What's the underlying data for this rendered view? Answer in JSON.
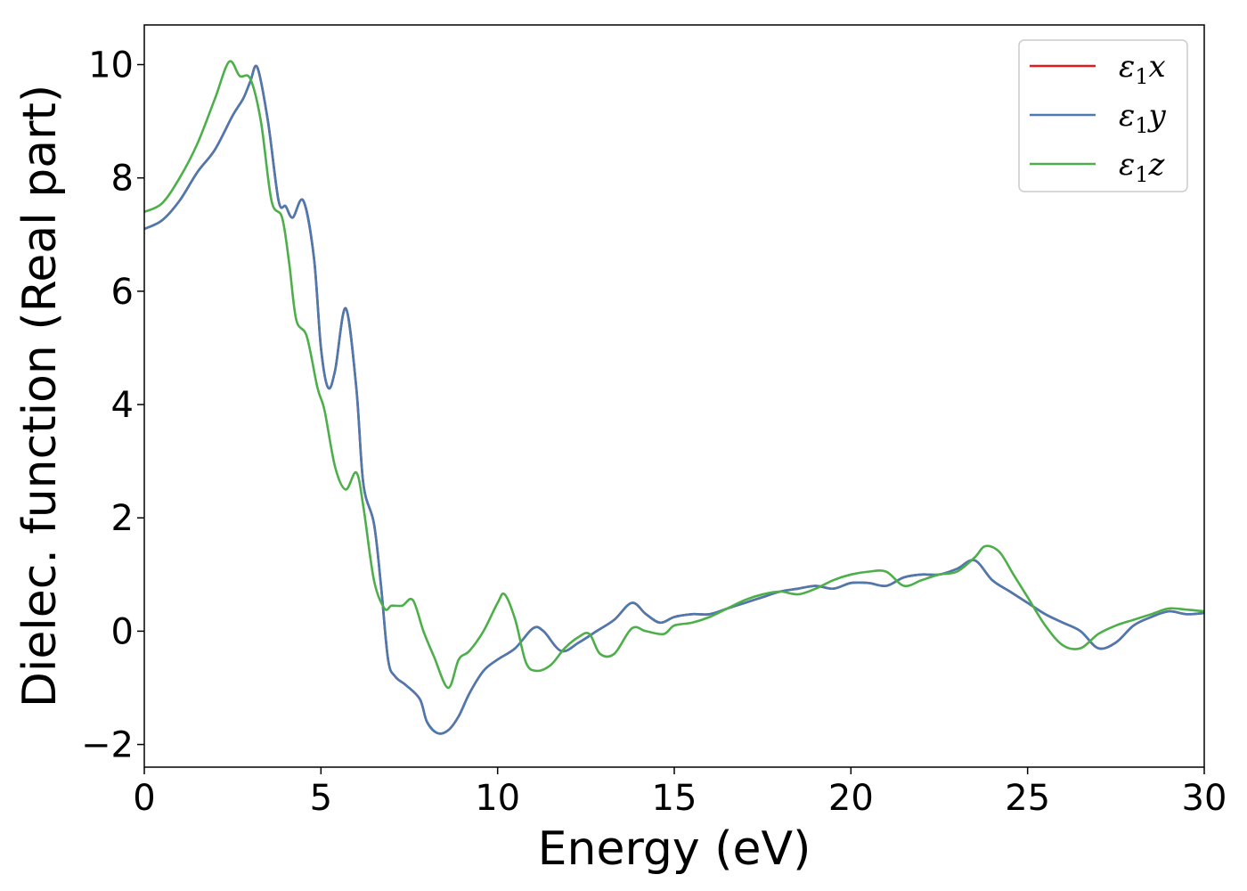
{
  "chart_data": {
    "type": "line",
    "xlabel": "Energy (eV)",
    "ylabel": "Dielec. function (Real part)",
    "xlim": [
      0,
      30
    ],
    "ylim": [
      -2.4,
      10.7
    ],
    "xticks": [
      0,
      5,
      10,
      15,
      20,
      25,
      30
    ],
    "xtick_labels": [
      "0",
      "5",
      "10",
      "15",
      "20",
      "25",
      "30"
    ],
    "yticks": [
      -2,
      0,
      2,
      4,
      6,
      8,
      10
    ],
    "ytick_labels": [
      "−2",
      "0",
      "2",
      "4",
      "6",
      "8",
      "10"
    ],
    "grid": false,
    "legend_position": "top-right",
    "series": [
      {
        "name": "ε1x",
        "legend_main": "ε",
        "legend_sub": "1",
        "legend_var": "x",
        "color": "#e41a1c",
        "x": [
          0,
          0.5,
          1,
          1.5,
          2,
          2.5,
          2.8,
          3.0,
          3.2,
          3.5,
          3.8,
          4.0,
          4.2,
          4.5,
          4.8,
          5.0,
          5.2,
          5.4,
          5.7,
          6.0,
          6.2,
          6.5,
          6.7,
          6.9,
          7.1,
          7.4,
          7.8,
          8.0,
          8.3,
          8.6,
          8.9,
          9.2,
          9.6,
          10,
          10.5,
          11,
          11.3,
          11.8,
          12.3,
          12.8,
          13.3,
          13.8,
          14.2,
          14.6,
          15,
          15.5,
          16,
          16.5,
          17,
          17.5,
          18,
          18.5,
          19,
          19.5,
          20,
          20.5,
          21,
          21.5,
          22,
          22.5,
          23,
          23.5,
          24,
          24.5,
          25,
          25.5,
          26,
          26.5,
          27,
          27.5,
          28,
          28.5,
          29,
          29.5,
          30
        ],
        "y": [
          7.1,
          7.25,
          7.6,
          8.1,
          8.5,
          9.1,
          9.4,
          9.7,
          9.95,
          9.0,
          7.6,
          7.5,
          7.3,
          7.6,
          6.6,
          5.0,
          4.3,
          4.6,
          5.7,
          4.3,
          2.6,
          1.9,
          0.8,
          -0.5,
          -0.8,
          -0.95,
          -1.2,
          -1.6,
          -1.8,
          -1.75,
          -1.5,
          -1.1,
          -0.7,
          -0.5,
          -0.3,
          0.05,
          0.0,
          -0.35,
          -0.2,
          0.0,
          0.2,
          0.5,
          0.3,
          0.15,
          0.25,
          0.3,
          0.3,
          0.4,
          0.5,
          0.6,
          0.7,
          0.75,
          0.8,
          0.75,
          0.85,
          0.85,
          0.8,
          0.95,
          1.0,
          1.0,
          1.1,
          1.25,
          0.9,
          0.7,
          0.5,
          0.3,
          0.15,
          0.0,
          -0.3,
          -0.2,
          0.1,
          0.25,
          0.35,
          0.3,
          0.32
        ]
      },
      {
        "name": "ε1y",
        "legend_main": "ε",
        "legend_sub": "1",
        "legend_var": "y",
        "color": "#4a7ab0",
        "x": [
          0,
          0.5,
          1,
          1.5,
          2,
          2.5,
          2.8,
          3.0,
          3.2,
          3.5,
          3.8,
          4.0,
          4.2,
          4.5,
          4.8,
          5.0,
          5.2,
          5.4,
          5.7,
          6.0,
          6.2,
          6.5,
          6.7,
          6.9,
          7.1,
          7.4,
          7.8,
          8.0,
          8.3,
          8.6,
          8.9,
          9.2,
          9.6,
          10,
          10.5,
          11,
          11.3,
          11.8,
          12.3,
          12.8,
          13.3,
          13.8,
          14.2,
          14.6,
          15,
          15.5,
          16,
          16.5,
          17,
          17.5,
          18,
          18.5,
          19,
          19.5,
          20,
          20.5,
          21,
          21.5,
          22,
          22.5,
          23,
          23.5,
          24,
          24.5,
          25,
          25.5,
          26,
          26.5,
          27,
          27.5,
          28,
          28.5,
          29,
          29.5,
          30
        ],
        "y": [
          7.1,
          7.25,
          7.6,
          8.1,
          8.5,
          9.1,
          9.4,
          9.7,
          9.95,
          9.0,
          7.6,
          7.5,
          7.3,
          7.6,
          6.6,
          5.0,
          4.3,
          4.6,
          5.7,
          4.3,
          2.6,
          1.9,
          0.8,
          -0.5,
          -0.8,
          -0.95,
          -1.2,
          -1.6,
          -1.8,
          -1.75,
          -1.5,
          -1.1,
          -0.7,
          -0.5,
          -0.3,
          0.05,
          0.0,
          -0.35,
          -0.2,
          0.0,
          0.2,
          0.5,
          0.3,
          0.15,
          0.25,
          0.3,
          0.3,
          0.4,
          0.5,
          0.6,
          0.7,
          0.75,
          0.8,
          0.75,
          0.85,
          0.85,
          0.8,
          0.95,
          1.0,
          1.0,
          1.1,
          1.25,
          0.9,
          0.7,
          0.5,
          0.3,
          0.15,
          0.0,
          -0.3,
          -0.2,
          0.1,
          0.25,
          0.35,
          0.3,
          0.32
        ]
      },
      {
        "name": "ε1z",
        "legend_main": "ε",
        "legend_sub": "1",
        "legend_var": "z",
        "color": "#4daf4a",
        "x": [
          0,
          0.5,
          1,
          1.5,
          2,
          2.4,
          2.7,
          3.0,
          3.3,
          3.6,
          3.9,
          4.1,
          4.3,
          4.6,
          4.9,
          5.1,
          5.4,
          5.7,
          6.0,
          6.2,
          6.5,
          6.8,
          7.0,
          7.3,
          7.6,
          7.9,
          8.2,
          8.6,
          8.9,
          9.2,
          9.6,
          10,
          10.2,
          10.5,
          10.8,
          11.1,
          11.5,
          11.9,
          12.3,
          12.6,
          12.9,
          13.3,
          13.8,
          14.2,
          14.7,
          15,
          15.5,
          16,
          16.5,
          17,
          17.5,
          18,
          18.5,
          19,
          19.5,
          20,
          20.5,
          21,
          21.5,
          22,
          22.5,
          23,
          23.5,
          23.8,
          24.2,
          24.6,
          25,
          25.5,
          26,
          26.5,
          27,
          27.5,
          28,
          28.5,
          29,
          29.5,
          30
        ],
        "y": [
          7.4,
          7.55,
          8.0,
          8.6,
          9.4,
          10.05,
          9.8,
          9.75,
          9.0,
          7.6,
          7.3,
          6.5,
          5.5,
          5.2,
          4.3,
          3.9,
          2.9,
          2.5,
          2.8,
          2.2,
          0.9,
          0.4,
          0.45,
          0.45,
          0.55,
          0.0,
          -0.45,
          -1.0,
          -0.5,
          -0.35,
          0.0,
          0.5,
          0.65,
          0.2,
          -0.55,
          -0.7,
          -0.6,
          -0.3,
          -0.1,
          -0.05,
          -0.4,
          -0.4,
          0.05,
          0.0,
          -0.05,
          0.1,
          0.15,
          0.25,
          0.4,
          0.55,
          0.65,
          0.7,
          0.65,
          0.75,
          0.9,
          1.0,
          1.05,
          1.05,
          0.8,
          0.9,
          1.0,
          1.05,
          1.3,
          1.5,
          1.4,
          1.0,
          0.6,
          0.1,
          -0.25,
          -0.3,
          -0.05,
          0.1,
          0.2,
          0.3,
          0.4,
          0.38,
          0.35
        ]
      }
    ]
  }
}
